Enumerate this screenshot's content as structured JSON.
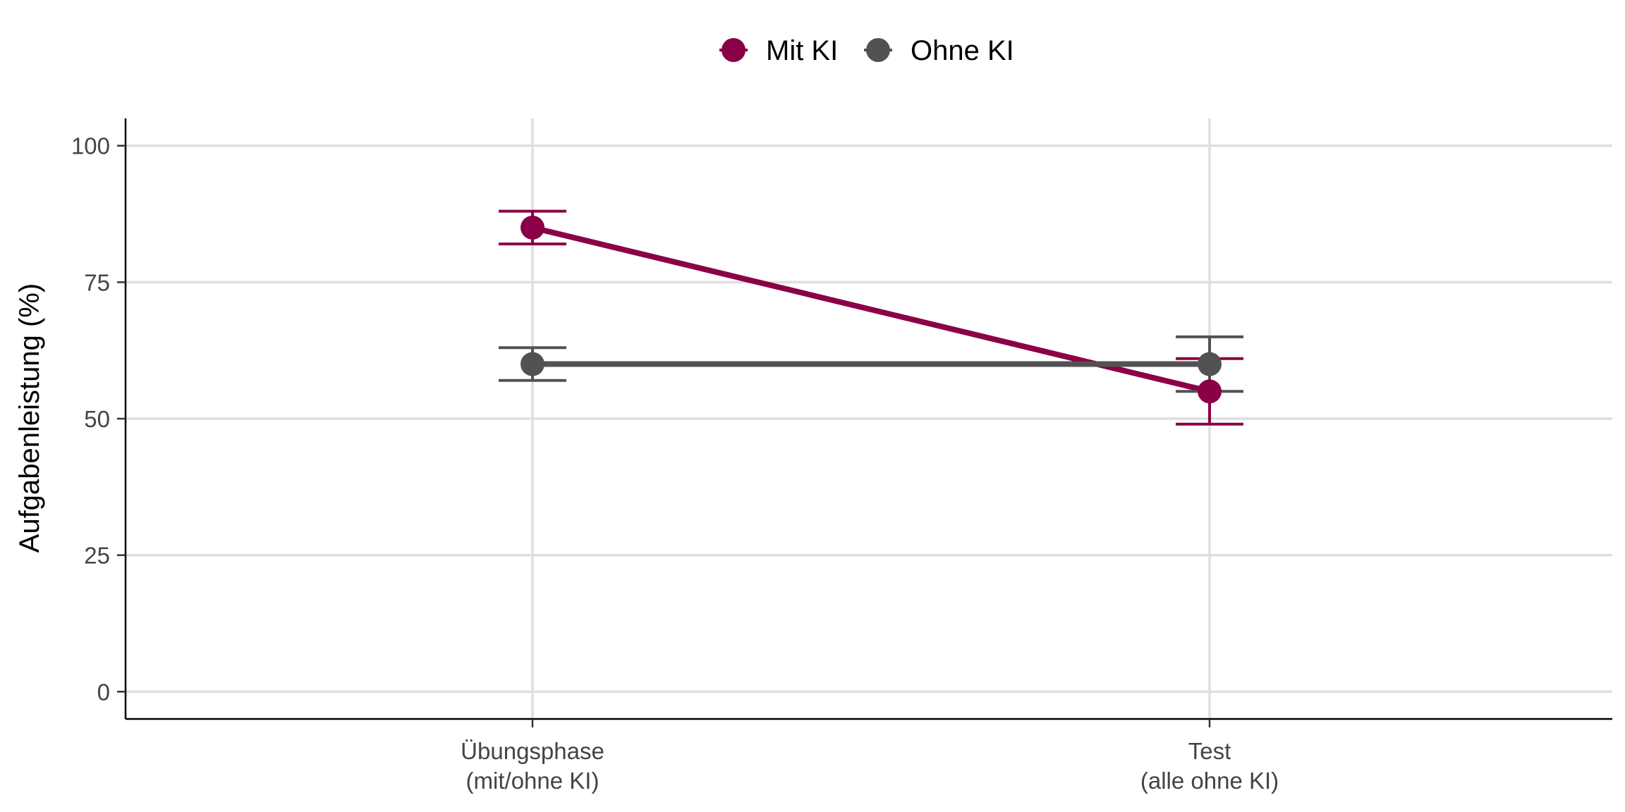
{
  "chart_data": {
    "type": "line",
    "categories": [
      "Übungsphase\n(mit/ohne KI)",
      "Test\n(alle ohne KI)"
    ],
    "ylabel": "Aufgabenleistung (%)",
    "xlabel": "",
    "ylim": [
      -5,
      105
    ],
    "yticks": [
      0,
      25,
      50,
      75,
      100
    ],
    "grid": true,
    "legend_position": "top",
    "series": [
      {
        "name": "Mit KI",
        "color": "#8b0046",
        "values": [
          85,
          55
        ],
        "err_low": [
          82,
          49
        ],
        "err_high": [
          88,
          61
        ]
      },
      {
        "name": "Ohne KI",
        "color": "#525252",
        "values": [
          60,
          60
        ],
        "err_low": [
          57,
          55
        ],
        "err_high": [
          63,
          65
        ]
      }
    ]
  }
}
